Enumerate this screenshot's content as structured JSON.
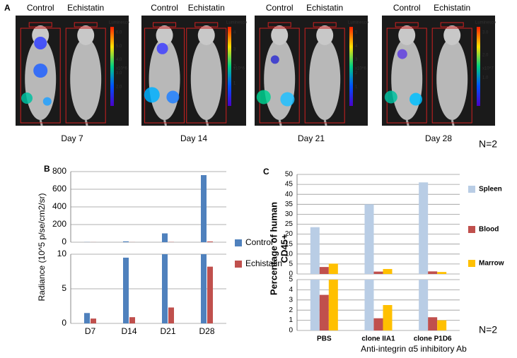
{
  "panel_a": {
    "letter": "A",
    "n_label": "N=2",
    "days": [
      {
        "day": "Day 7",
        "control": "Control",
        "treated": "Echistatin",
        "scale_title": "Luminesce",
        "scale_labels": [
          "6.0",
          "5.0",
          "4.0",
          "3.0",
          "2.0"
        ],
        "unit": "x10^6"
      },
      {
        "day": "Day 14",
        "control": "Control",
        "treated": "Echistatin",
        "scale_title": "Luminesce",
        "scale_labels": [
          "4",
          "3",
          "2",
          "1"
        ],
        "unit": "x10^6"
      },
      {
        "day": "Day 21",
        "control": "Control",
        "treated": "Echistatin",
        "scale_title": "Luminesce",
        "scale_labels": [
          "5",
          "4",
          "3",
          "2",
          "1"
        ],
        "unit": "x10^6"
      },
      {
        "day": "Day 28",
        "control": "Control",
        "treated": "Echistatin",
        "scale_title": "Luminesce",
        "scale_labels": [
          "3.0",
          "2.0",
          "1.0"
        ],
        "unit": "x10^7"
      }
    ]
  },
  "chart_data": [
    {
      "type": "bar",
      "letter": "B",
      "ylabel": "Radiance (10^5 p/se/cm2/sr)",
      "categories": [
        "D7",
        "D14",
        "D21",
        "D28"
      ],
      "series": [
        {
          "name": "Control",
          "color": "#4f81bd",
          "values": [
            1.5,
            9.5,
            100,
            760
          ]
        },
        {
          "name": "Echistatin",
          "color": "#c0504d",
          "values": [
            0.7,
            0.9,
            2.3,
            8.2
          ]
        }
      ],
      "axes": [
        {
          "ylim": [
            0,
            800
          ],
          "yticks": [
            0,
            200,
            400,
            600,
            800
          ]
        },
        {
          "ylim": [
            0,
            10
          ],
          "yticks": [
            0,
            5,
            10
          ]
        }
      ],
      "grid": true,
      "legend": "right"
    },
    {
      "type": "bar",
      "letter": "C",
      "ylabel": [
        "Percentage of human",
        "CD45+"
      ],
      "xlabel": "Anti-integrin α5 inhibitory Ab",
      "n_label": "N=2",
      "categories": [
        "PBS",
        "clone IIA1",
        "clone P1D6"
      ],
      "series": [
        {
          "name": "Spleen",
          "color": "#b9cde5",
          "values": [
            23.5,
            35,
            46
          ]
        },
        {
          "name": "Blood",
          "color": "#c0504d",
          "values": [
            3.5,
            1.2,
            1.3
          ]
        },
        {
          "name": "Marrow",
          "color": "#ffc000",
          "values": [
            5.2,
            2.5,
            1.0
          ]
        }
      ],
      "axes": [
        {
          "ylim": [
            0,
            50
          ],
          "yticks": [
            0,
            5,
            10,
            15,
            20,
            25,
            30,
            35,
            40,
            45,
            50
          ]
        },
        {
          "ylim": [
            0,
            5
          ],
          "yticks": [
            0,
            1,
            2,
            3,
            4,
            5
          ]
        }
      ],
      "grid": true,
      "legend": "right"
    }
  ]
}
